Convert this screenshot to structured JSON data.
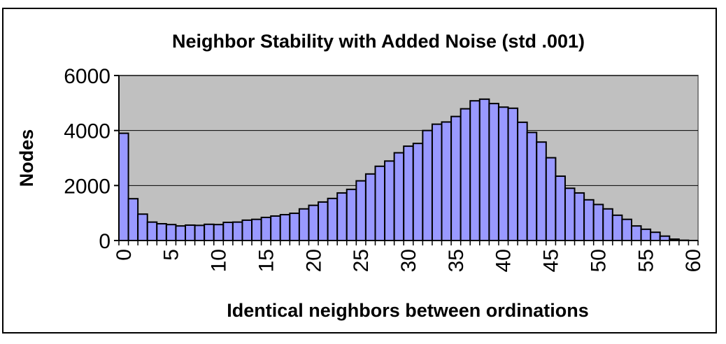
{
  "chart_data": {
    "type": "bar",
    "title": "Neighbor Stability with Added Noise (std .001)",
    "xlabel": "Identical neighbors between ordinations",
    "ylabel": "Nodes",
    "ylim": [
      0,
      6000
    ],
    "yticks": [
      "0",
      "2000",
      "4000",
      "6000"
    ],
    "xtick_labels": [
      "0",
      "5",
      "10",
      "15",
      "20",
      "25",
      "30",
      "35",
      "40",
      "45",
      "50",
      "55",
      "60"
    ],
    "x": [
      0,
      1,
      2,
      3,
      4,
      5,
      6,
      7,
      8,
      9,
      10,
      11,
      12,
      13,
      14,
      15,
      16,
      17,
      18,
      19,
      20,
      21,
      22,
      23,
      24,
      25,
      26,
      27,
      28,
      29,
      30,
      31,
      32,
      33,
      34,
      35,
      36,
      37,
      38,
      39,
      40,
      41,
      42,
      43,
      44,
      45,
      46,
      47,
      48,
      49,
      50,
      51,
      52,
      53,
      54,
      55,
      56,
      57,
      58,
      59,
      60
    ],
    "values": [
      3900,
      1520,
      960,
      670,
      610,
      580,
      530,
      560,
      550,
      590,
      580,
      660,
      670,
      740,
      770,
      840,
      890,
      940,
      990,
      1150,
      1280,
      1400,
      1530,
      1730,
      1860,
      2170,
      2420,
      2700,
      2890,
      3190,
      3430,
      3530,
      4000,
      4230,
      4310,
      4510,
      4790,
      5080,
      5140,
      4980,
      4850,
      4810,
      4300,
      3930,
      3580,
      3010,
      2340,
      1900,
      1730,
      1480,
      1310,
      1150,
      920,
      770,
      530,
      410,
      300,
      160,
      50,
      10,
      0
    ],
    "colors": {
      "bar_fill": "#9999ff",
      "plot_bg": "#c0c0c0",
      "grid": "#000000"
    },
    "grid": true,
    "legend": "none"
  }
}
